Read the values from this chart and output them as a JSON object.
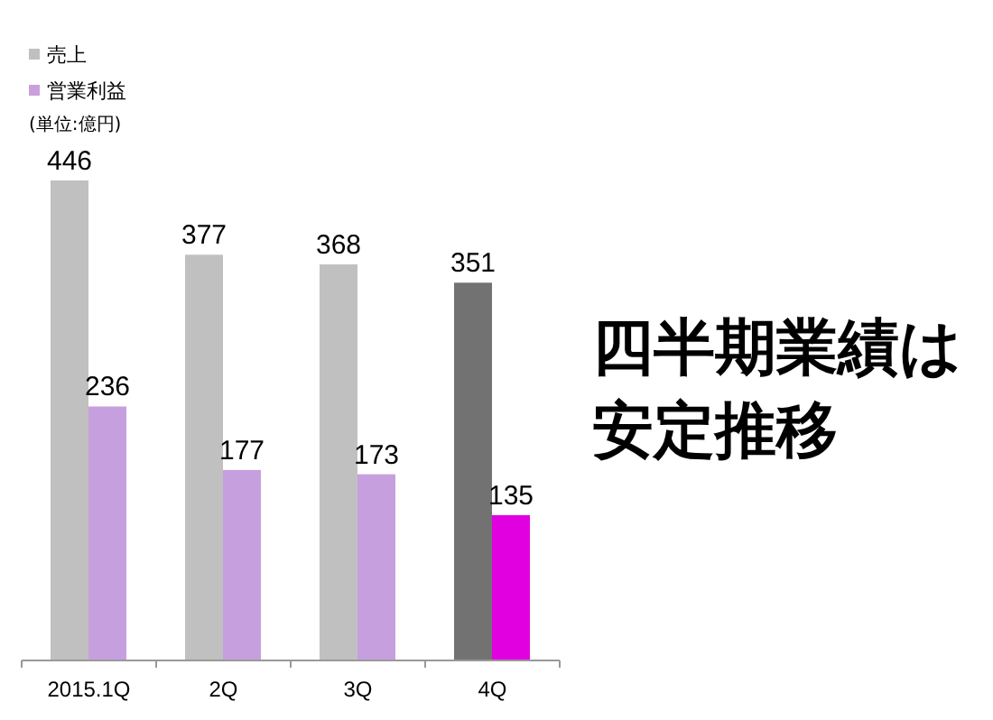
{
  "chart_data": {
    "type": "bar",
    "title": "四半期業績は安定推移",
    "annotations": [
      "(単位:億円)"
    ],
    "categories": [
      "2015.1Q",
      "2Q",
      "3Q",
      "4Q"
    ],
    "series": [
      {
        "name": "売上",
        "color": "#c0c0c0",
        "colors": [
          "#c0c0c0",
          "#c0c0c0",
          "#c0c0c0",
          "#727272"
        ],
        "values": [
          446,
          377,
          368,
          351
        ]
      },
      {
        "name": "営業利益",
        "color": "#c9a0dc",
        "colors": [
          "#c6a0de",
          "#c6a0de",
          "#c6a0de",
          "#e000e0"
        ],
        "values": [
          236,
          177,
          173,
          135
        ]
      }
    ],
    "data_labels": true,
    "legend": "top left"
  }
}
